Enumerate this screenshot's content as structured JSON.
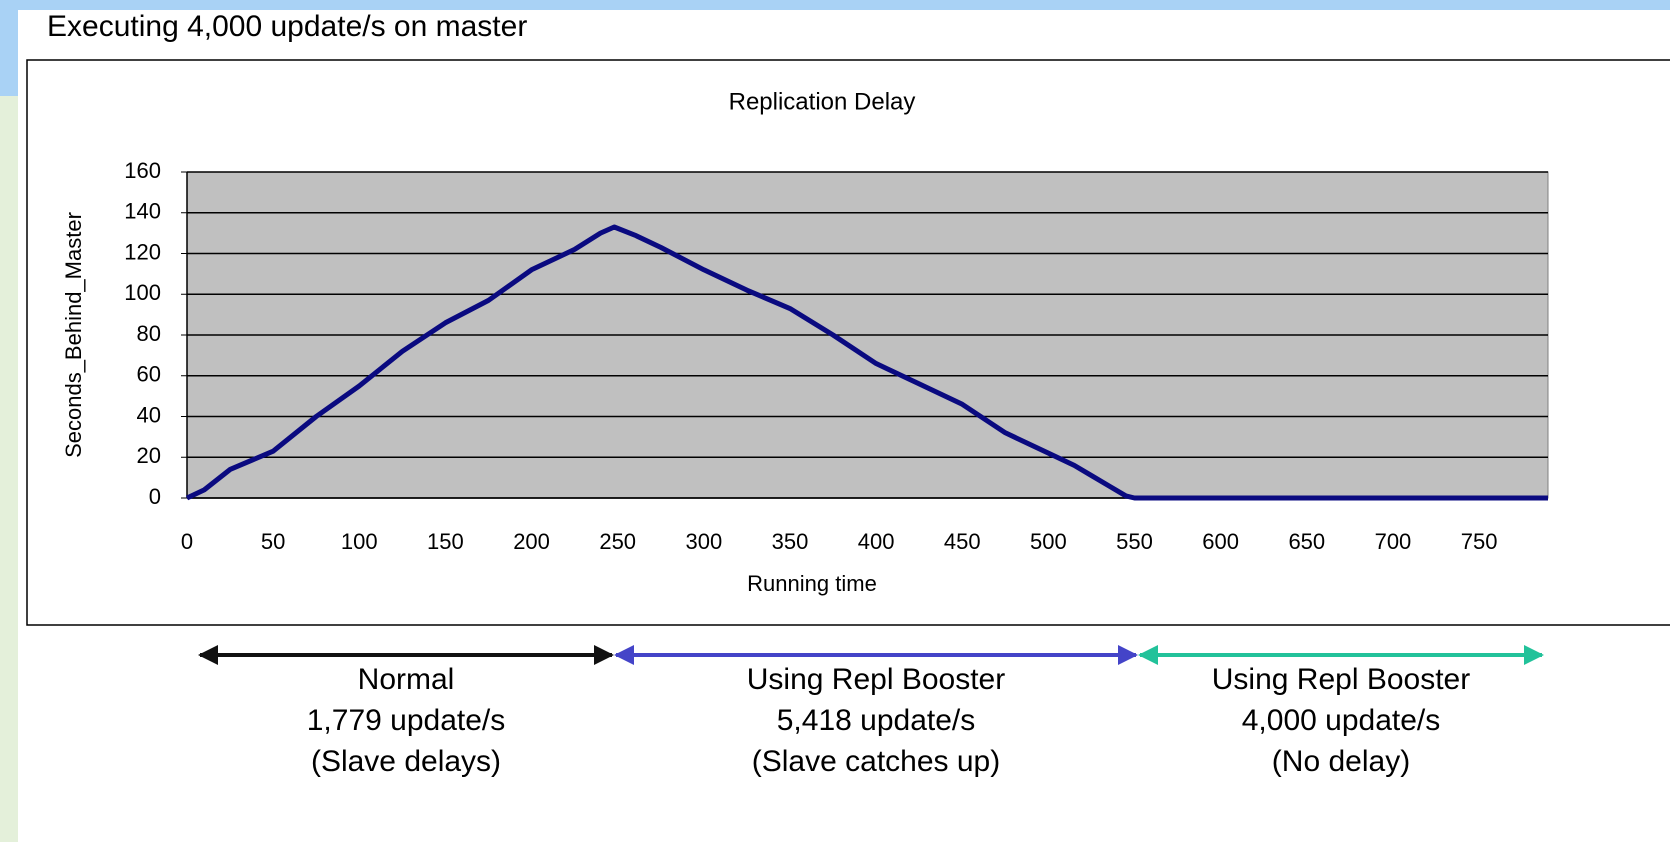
{
  "slide_title": "Executing 4,000 update/s on master",
  "chart_data": {
    "type": "line",
    "title": "Replication Delay",
    "x_label": "Running time",
    "y_label": "Seconds_Behind_Master",
    "x": [
      0,
      10,
      25,
      50,
      75,
      100,
      125,
      150,
      175,
      200,
      225,
      240,
      248,
      260,
      275,
      300,
      325,
      350,
      375,
      400,
      425,
      450,
      475,
      500,
      515,
      525,
      535,
      545,
      550,
      600,
      650,
      700,
      750,
      790
    ],
    "series": [
      {
        "color": "#0a0a80",
        "values": [
          0,
          4,
          14,
          23,
          40,
          55,
          72,
          86,
          97,
          112,
          122,
          130,
          133,
          129,
          123,
          112,
          102,
          93,
          80,
          66,
          56,
          46,
          32,
          22,
          16,
          11,
          6,
          1,
          0,
          0,
          0,
          0,
          0,
          0
        ]
      }
    ],
    "xlim": [
      0,
      790
    ],
    "ylim": [
      0,
      160
    ],
    "xticks": [
      0,
      50,
      100,
      150,
      200,
      250,
      300,
      350,
      400,
      450,
      500,
      550,
      600,
      650,
      700,
      750
    ],
    "yticks": [
      0,
      20,
      40,
      60,
      80,
      100,
      120,
      140,
      160
    ],
    "grid": true,
    "plot_background": "#c0c0c0",
    "annotations": [
      {
        "color": "#111111",
        "lines": [
          "Normal",
          "1,779 update/s",
          "(Slave delays)"
        ]
      },
      {
        "color": "#4444c8",
        "lines": [
          "Using Repl Booster",
          "5,418 update/s",
          "(Slave catches up)"
        ]
      },
      {
        "color": "#22c29a",
        "lines": [
          "Using Repl Booster",
          "4,000 update/s",
          "(No delay)"
        ]
      }
    ]
  }
}
